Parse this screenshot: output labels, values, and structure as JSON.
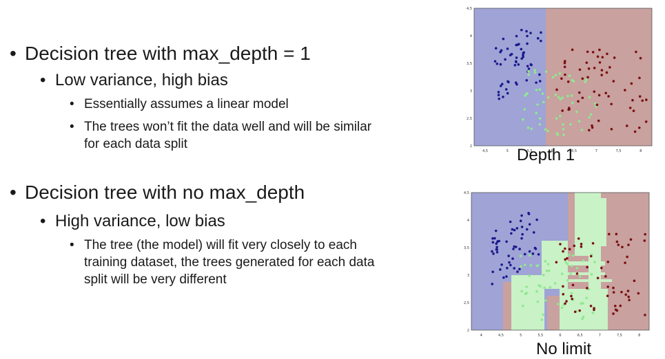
{
  "slide": {
    "b1a": "Decision tree with max_depth = 1",
    "b2a": "Low variance, high bias",
    "b3a": "Essentially assumes a linear model",
    "b3b_line1": "The trees won’t fit the data well and will be similar",
    "b3b_line2": "for each data split",
    "b1b": "Decision tree with no max_depth",
    "b2b": "High variance, low bias",
    "b3c_line1": "The tree (the model) will fit very closely to each",
    "b3c_line2": "training dataset, the trees generated for each data",
    "b3c_line3": "split will be very different"
  },
  "plot1": {
    "caption": "Depth 1"
  },
  "plot2": {
    "caption": "No limit"
  },
  "axes": {
    "plot1": {
      "x_ticks": [
        "4,5",
        "5",
        "5,5",
        "6",
        "6,5",
        "7",
        "7,5",
        "8"
      ],
      "y_ticks": [
        "2",
        "2,5",
        "3",
        "3,5",
        "4",
        "4,5"
      ]
    },
    "plot2": {
      "x_ticks": [
        "4",
        "4,5",
        "5",
        "5,5",
        "6",
        "6,5",
        "7",
        "7,5",
        "8"
      ],
      "y_ticks": [
        "2",
        "2,5",
        "3",
        "3,5",
        "4",
        "4,5"
      ]
    }
  },
  "colors": {
    "region_blue": "#9fa3d6",
    "region_red": "#c9a19f",
    "region_green": "#c9f2c6",
    "pt_blue": "#1a1a8c",
    "pt_red": "#7a1010",
    "pt_green": "#90e890"
  }
}
